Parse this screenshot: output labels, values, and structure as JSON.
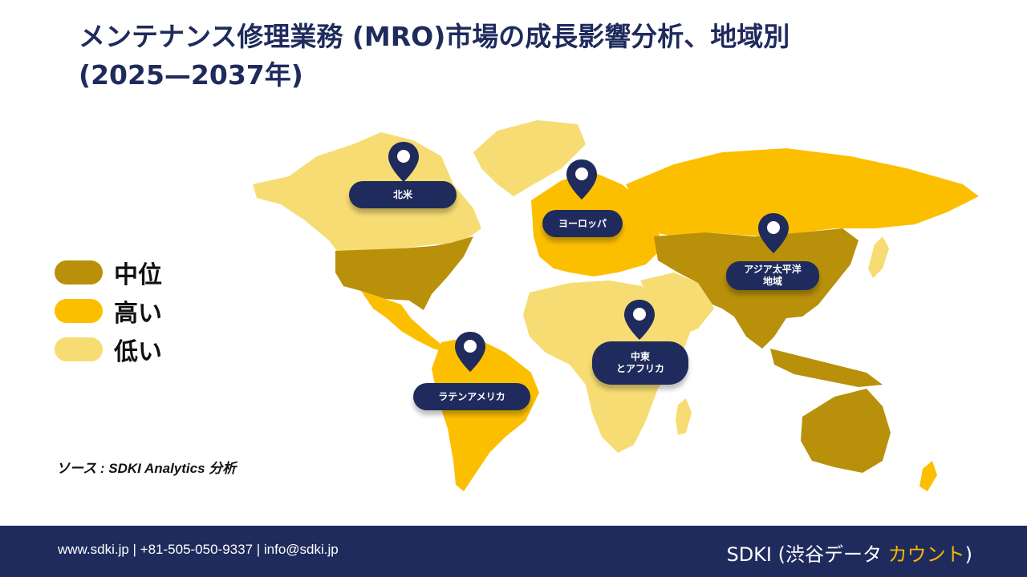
{
  "title": {
    "line1": "メンテナンス修理業務 (MRO)市場の成長影響分析、地域別",
    "line2": "(2025—2037年)"
  },
  "colors": {
    "medium": "#b8900a",
    "high": "#fcbf00",
    "low": "#f6dc72",
    "navy": "#1f2b5c"
  },
  "legend": [
    {
      "label": "中位",
      "level": "medium"
    },
    {
      "label": "高い",
      "level": "high"
    },
    {
      "label": "低い",
      "level": "low"
    }
  ],
  "regions": {
    "north_america": {
      "label": "北米",
      "level": "medium"
    },
    "europe": {
      "label": "ヨーロッパ",
      "level": "high"
    },
    "asia_pacific": {
      "label_line1": "アジア太平洋",
      "label_line2": "地域",
      "level": "medium"
    },
    "mea": {
      "label_line1": "中東",
      "label_line2": "とアフリカ",
      "level": "low"
    },
    "latin_america": {
      "label": "ラテンアメリカ",
      "level": "high"
    }
  },
  "source": "ソース : SDKI Analytics 分析",
  "footer": {
    "contact": "www.sdki.jp | +81-505-050-9337 | info@sdki.jp",
    "brand_prefix": "SDKI (渋谷データ ",
    "brand_accent": "カウント",
    "brand_suffix": ")"
  }
}
